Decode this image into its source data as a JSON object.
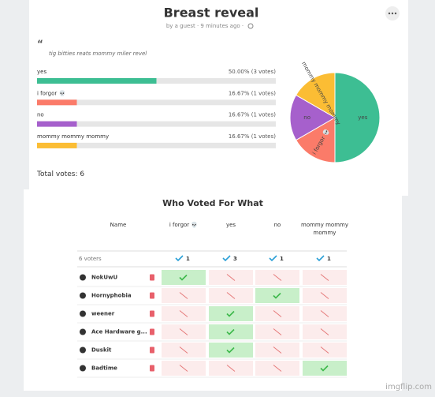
{
  "header": {
    "title": "Breast reveal",
    "byline": "by a guest · 9 minutes ago ·"
  },
  "description": "tig bitties reats mommy miler revel",
  "options": [
    {
      "label": "yes",
      "result": "50.00% (3 votes)",
      "votes": 3,
      "color": "#3dbe93"
    },
    {
      "label": "i forgor 💀",
      "result": "16.67% (1 votes)",
      "votes": 1,
      "color": "#fb7b69"
    },
    {
      "label": "no",
      "result": "16.67% (1 votes)",
      "votes": 1,
      "color": "#a660cc"
    },
    {
      "label": "mommy mommy mommy",
      "result": "16.67% (1 votes)",
      "votes": 1,
      "color": "#fbbd34"
    }
  ],
  "total_label": "Total votes:",
  "total": 6,
  "results_table": {
    "title": "Who Voted For What",
    "name_header": "Name",
    "columns": [
      "i forgor 💀",
      "yes",
      "no",
      "mommy mommy mommy"
    ],
    "voter_count": "6 voters",
    "counts": [
      1,
      3,
      1,
      1
    ],
    "voters": [
      {
        "name": "NokUwU",
        "choice": 0
      },
      {
        "name": "Hornyphobia",
        "choice": 2
      },
      {
        "name": "weener",
        "choice": 1
      },
      {
        "name": "Ace Hardware g...",
        "choice": 1
      },
      {
        "name": "Duskit",
        "choice": 1
      },
      {
        "name": "Badtime",
        "choice": 3
      }
    ]
  },
  "watermark": "imgflip.com"
}
